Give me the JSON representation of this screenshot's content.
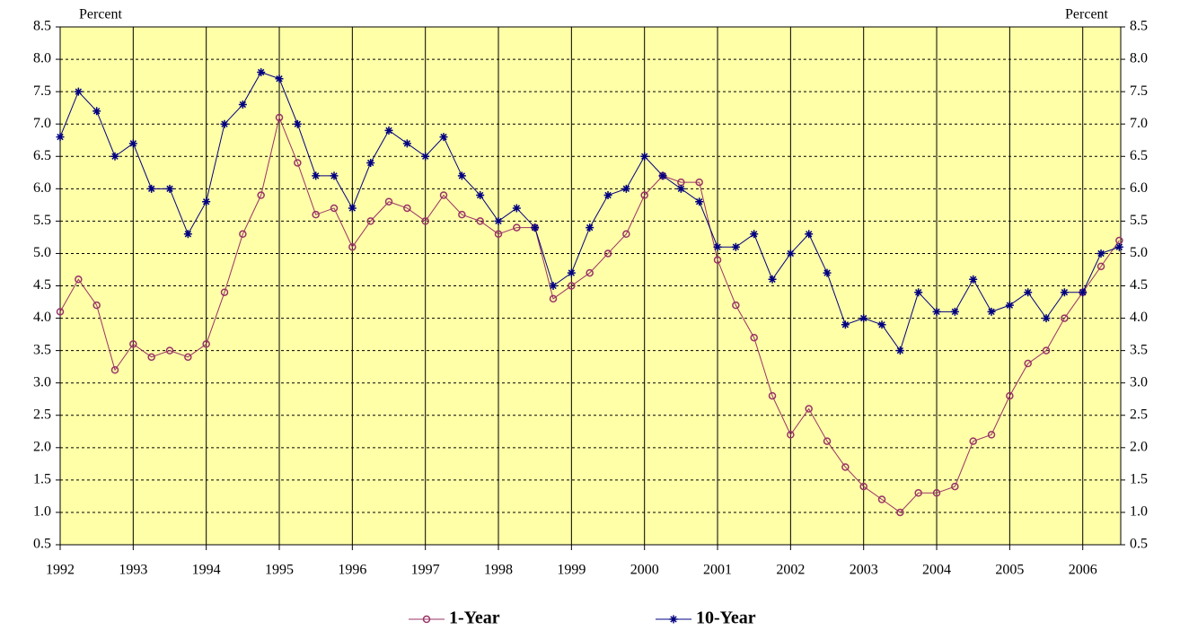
{
  "chart_data": {
    "type": "line",
    "y_label": "Percent",
    "y2_label": "Percent",
    "x": [
      1992,
      1992.25,
      1992.5,
      1992.75,
      1993,
      1993.25,
      1993.5,
      1993.75,
      1994,
      1994.25,
      1994.5,
      1994.75,
      1995,
      1995.25,
      1995.5,
      1995.75,
      1996,
      1996.25,
      1996.5,
      1996.75,
      1997,
      1997.25,
      1997.5,
      1997.75,
      1998,
      1998.25,
      1998.5,
      1998.75,
      1999,
      1999.25,
      1999.5,
      1999.75,
      2000,
      2000.25,
      2000.5,
      2000.75,
      2001,
      2001.25,
      2001.5,
      2001.75,
      2002,
      2002.25,
      2002.5,
      2002.75,
      2003,
      2003.25,
      2003.5,
      2003.75,
      2004,
      2004.25,
      2004.5,
      2004.75,
      2005,
      2005.25,
      2005.5,
      2005.75,
      2006,
      2006.25,
      2006.5
    ],
    "series": [
      {
        "name": "1-Year",
        "color": "#993366",
        "marker": "circle",
        "values": [
          4.1,
          4.6,
          4.2,
          3.2,
          3.6,
          3.4,
          3.5,
          3.4,
          3.6,
          4.4,
          5.3,
          5.9,
          7.1,
          6.4,
          5.6,
          5.7,
          5.1,
          5.5,
          5.8,
          5.7,
          5.5,
          5.9,
          5.6,
          5.5,
          5.3,
          5.4,
          5.4,
          4.3,
          4.5,
          4.7,
          5.0,
          5.3,
          5.9,
          6.2,
          6.1,
          6.1,
          4.9,
          4.2,
          3.7,
          2.8,
          2.2,
          2.6,
          2.1,
          1.7,
          1.4,
          1.2,
          1.0,
          1.3,
          1.3,
          1.4,
          2.1,
          2.2,
          2.8,
          3.3,
          3.5,
          4.0,
          4.4,
          4.8,
          5.2
        ]
      },
      {
        "name": "10-Year",
        "color": "#000080",
        "marker": "asterisk",
        "values": [
          6.8,
          7.5,
          7.2,
          6.5,
          6.7,
          6.0,
          6.0,
          5.3,
          5.8,
          7.0,
          7.3,
          7.8,
          7.7,
          7.0,
          6.2,
          6.2,
          5.7,
          6.4,
          6.9,
          6.7,
          6.5,
          6.8,
          6.2,
          5.9,
          5.5,
          5.7,
          5.4,
          4.5,
          4.7,
          5.4,
          5.9,
          6.0,
          6.5,
          6.2,
          6.0,
          5.8,
          5.1,
          5.1,
          5.3,
          4.6,
          5.0,
          5.3,
          4.7,
          3.9,
          4.0,
          3.9,
          3.5,
          4.4,
          4.1,
          4.1,
          4.6,
          4.1,
          4.2,
          4.4,
          4.0,
          4.4,
          4.4,
          5.0,
          5.1
        ]
      }
    ],
    "xlim": [
      1992,
      2006.52
    ],
    "xticks": [
      1992,
      1993,
      1994,
      1995,
      1996,
      1997,
      1998,
      1999,
      2000,
      2001,
      2002,
      2003,
      2004,
      2005,
      2006
    ],
    "ylim": [
      0.5,
      8.5
    ],
    "yticks": [
      0.5,
      {
        "value": 1,
        "label": "1.0"
      },
      1.5,
      {
        "value": 2,
        "label": "2.0"
      },
      2.5,
      {
        "value": 3,
        "label": "3.0"
      },
      3.5,
      {
        "value": 4,
        "label": "4.0"
      },
      4.5,
      {
        "value": 5,
        "label": "5.0"
      },
      5.5,
      {
        "value": 6,
        "label": "6.0"
      },
      6.5,
      {
        "value": 7,
        "label": "7.0"
      },
      7.5,
      {
        "value": 8,
        "label": "8.0"
      },
      8.5
    ],
    "y2lim": [
      0.5,
      8.5
    ],
    "y2ticks": [
      0.5,
      {
        "value": 1,
        "label": "1.0"
      },
      1.5,
      {
        "value": 2,
        "label": "2.0"
      },
      2.5,
      {
        "value": 3,
        "label": "3.0"
      },
      3.5,
      {
        "value": 4,
        "label": "4.0"
      },
      4.5,
      {
        "value": 5,
        "label": "5.0"
      },
      5.5,
      {
        "value": 6,
        "label": "6.0"
      },
      6.5,
      {
        "value": 7,
        "label": "7.0"
      },
      7.5,
      {
        "value": 8,
        "label": "8.0"
      },
      8.5
    ],
    "grid": true,
    "background": "#ffffa8"
  }
}
